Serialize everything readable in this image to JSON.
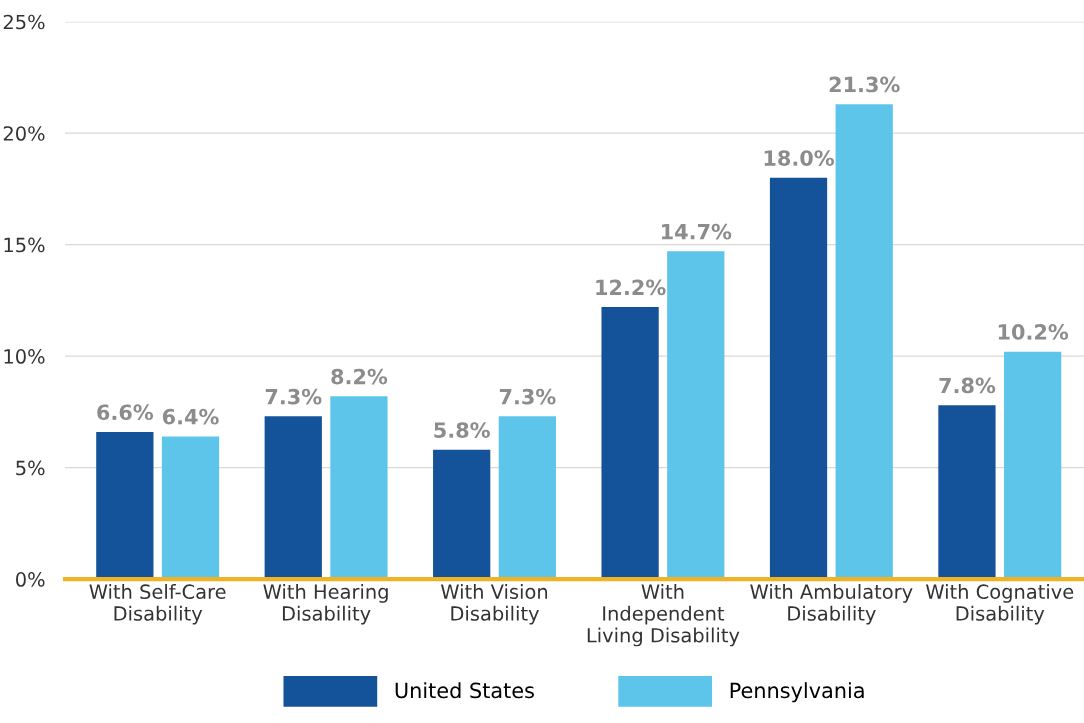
{
  "chart_data": {
    "type": "bar",
    "categories": [
      "With Self-Care\nDisability",
      "With Hearing\nDisability",
      "With Vision\nDisability",
      "With\nIndependent\nLiving Disability",
      "With Ambulatory\nDisability",
      "With Cognative\nDisability"
    ],
    "series": [
      {
        "name": "United States",
        "color": "#14539a",
        "values": [
          6.6,
          7.3,
          5.8,
          12.2,
          18.0,
          7.8
        ],
        "value_labels": [
          "6.6%",
          "7.3%",
          "5.8%",
          "12.2%",
          "18.0%",
          "7.8%"
        ]
      },
      {
        "name": "Pennsylvania",
        "color": "#5ec5ea",
        "values": [
          6.4,
          8.2,
          7.3,
          14.7,
          21.3,
          10.2
        ],
        "value_labels": [
          "6.4%",
          "8.2%",
          "7.3%",
          "14.7%",
          "21.3%",
          "10.2%"
        ]
      }
    ],
    "ylim": [
      0,
      25
    ],
    "yticks": [
      {
        "value": 0,
        "label": "0%"
      },
      {
        "value": 5,
        "label": "5%"
      },
      {
        "value": 10,
        "label": "10%"
      },
      {
        "value": 15,
        "label": "15%"
      },
      {
        "value": 20,
        "label": "20%"
      },
      {
        "value": 25,
        "label": "25%"
      }
    ],
    "grid": "y",
    "legend": "bottom"
  }
}
